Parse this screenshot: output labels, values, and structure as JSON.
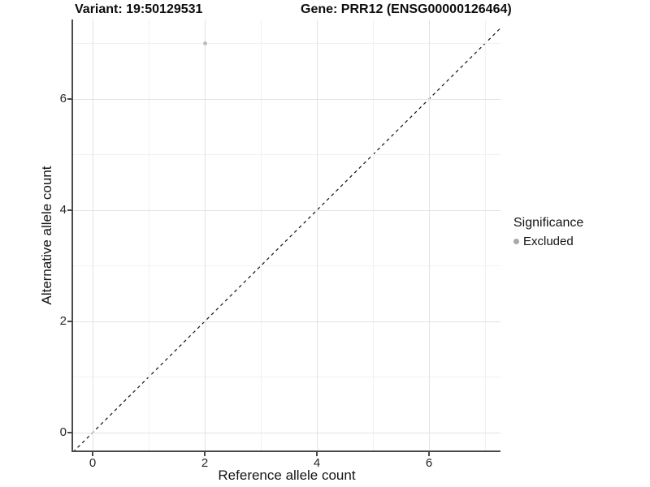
{
  "title": {
    "variant": "Variant: 19:50129531",
    "gene": "Gene: PRR12 (ENSG00000126464)"
  },
  "x_axis": {
    "label": "Reference allele count",
    "ticks": [
      "0",
      "2",
      "4",
      "6"
    ]
  },
  "y_axis": {
    "label": "Alternative allele count",
    "ticks": [
      "0",
      "2",
      "4",
      "6"
    ]
  },
  "legend": {
    "title": "Significance",
    "item": "Excluded"
  },
  "colors": {
    "point": "#bdbdbd",
    "legend_point": "#a9a9a9",
    "grid_major": "#e3e3e3",
    "grid_minor": "#f1f1f1",
    "axis_line": "#4a4a4a",
    "identity_line": "#111111",
    "text": "#141414"
  },
  "chart_data": {
    "type": "scatter",
    "title": "Variant: 19:50129531 | Gene: PRR12 (ENSG00000126464)",
    "xlabel": "Reference allele count",
    "ylabel": "Alternative allele count",
    "xlim": [
      -0.35,
      7.35
    ],
    "ylim": [
      -0.35,
      7.35
    ],
    "x_ticks": [
      0,
      2,
      4,
      6
    ],
    "y_ticks": [
      0,
      2,
      4,
      6
    ],
    "grid": {
      "visible": true,
      "major": [
        0,
        2,
        4,
        6
      ],
      "minor": [
        1,
        3,
        5,
        7
      ]
    },
    "legend_position": "right",
    "legend_title": "Significance",
    "series": [
      {
        "name": "Excluded",
        "color": "#bdbdbd",
        "points": [
          {
            "x": 2,
            "y": 7
          }
        ]
      }
    ],
    "annotations": [
      {
        "type": "reference-line",
        "equation": "y = x",
        "style": "dashed",
        "color": "#111111"
      }
    ]
  }
}
